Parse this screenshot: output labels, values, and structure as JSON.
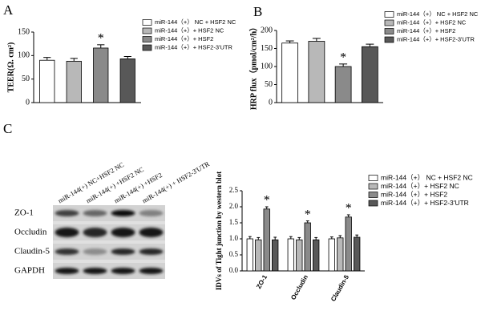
{
  "chart_data": [
    {
      "type": "bar",
      "panel": "A",
      "ylabel": "TEER(Ω. cm²)",
      "ylim": [
        0,
        150
      ],
      "yticks": [
        0,
        50,
        100,
        150
      ],
      "series": [
        {
          "name": "miR-144（+） NC + HSF2 NC",
          "color": "#ffffff",
          "values": [
            90
          ],
          "errors": [
            6
          ]
        },
        {
          "name": "miR-144（+）+ HSF2 NC",
          "color": "#b8b8b8",
          "values": [
            88
          ],
          "errors": [
            6
          ]
        },
        {
          "name": "miR-144（+）+ HSF2",
          "color": "#8a8a8a",
          "values": [
            116
          ],
          "errors": [
            7
          ]
        },
        {
          "name": "miR-144（+）+ HSF2-3'UTR",
          "color": "#585858",
          "values": [
            93
          ],
          "errors": [
            5
          ]
        }
      ],
      "annotations": [
        {
          "text": "*",
          "series": 2,
          "index": 0
        }
      ]
    },
    {
      "type": "bar",
      "panel": "B",
      "ylabel": "HRP flux（pmol/cm²/h）",
      "ylim": [
        0,
        200
      ],
      "yticks": [
        0,
        50,
        100,
        150,
        200
      ],
      "series": [
        {
          "name": "miR-144（+） NC + HSF2 NC",
          "color": "#ffffff",
          "values": [
            165
          ],
          "errors": [
            6
          ]
        },
        {
          "name": "miR-144（+）+ HSF2 NC",
          "color": "#b8b8b8",
          "values": [
            170
          ],
          "errors": [
            8
          ]
        },
        {
          "name": "miR-144（+）+ HSF2",
          "color": "#8a8a8a",
          "values": [
            100
          ],
          "errors": [
            7
          ]
        },
        {
          "name": "miR-144（+）+ HSF2-3'UTR",
          "color": "#585858",
          "values": [
            155
          ],
          "errors": [
            7
          ]
        }
      ],
      "annotations": [
        {
          "text": "*",
          "series": 2,
          "index": 0
        }
      ]
    },
    {
      "type": "bar",
      "panel": "C",
      "ylabel": "IDVs of Tight junction by western blot",
      "ylim": [
        0,
        2.5
      ],
      "yticks": [
        {
          "value": 0,
          "label": "0.0"
        },
        0.5,
        {
          "value": 1,
          "label": "1.0"
        },
        1.5,
        {
          "value": 2,
          "label": "2.0"
        },
        2.5
      ],
      "categories": [
        "ZO-1",
        "Occludin",
        "Claudin-5"
      ],
      "series": [
        {
          "name": "miR-144（+） NC + HSF2 NC",
          "color": "#ffffff",
          "values": [
            1.0,
            1.0,
            1.0
          ],
          "errors": [
            0.07,
            0.07,
            0.06
          ]
        },
        {
          "name": "miR-144（+）+ HSF2 NC",
          "color": "#b8b8b8",
          "values": [
            0.97,
            0.97,
            1.03
          ],
          "errors": [
            0.07,
            0.07,
            0.07
          ]
        },
        {
          "name": "miR-144（+）+ HSF2",
          "color": "#8a8a8a",
          "values": [
            1.93,
            1.5,
            1.68
          ],
          "errors": [
            0.07,
            0.06,
            0.07
          ]
        },
        {
          "name": "miR-144（+）+ HSF2-3'UTR",
          "color": "#585858",
          "values": [
            0.97,
            0.97,
            1.05
          ],
          "errors": [
            0.08,
            0.07,
            0.07
          ]
        }
      ],
      "annotations": [
        {
          "text": "*",
          "series": 2,
          "index": 0
        },
        {
          "text": "*",
          "series": 2,
          "index": 1
        },
        {
          "text": "*",
          "series": 2,
          "index": 2
        }
      ]
    }
  ],
  "blot": {
    "lanes": [
      "miR-144(+) NC+HSF2 NC",
      "miR-144(+) +HSF2 NC",
      "miR-144(+) +HSF2",
      "miR-144(+) + HSF2-3'UTR"
    ],
    "rows": [
      "ZO-1",
      "Occludin",
      "Claudin-5",
      "GAPDH"
    ]
  }
}
